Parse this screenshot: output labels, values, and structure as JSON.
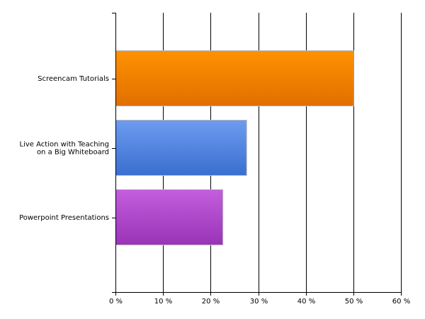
{
  "chart_data": {
    "type": "bar",
    "orientation": "horizontal",
    "categories": [
      [
        "Screencam Tutorials"
      ],
      [
        "Live Action with Teaching",
        "on a Big Whiteboard"
      ],
      [
        "Powerpoint Presentations"
      ]
    ],
    "values": [
      50,
      27.5,
      22.5
    ],
    "colors": [
      [
        "#ff9200",
        "#e06f00"
      ],
      [
        "#6d9cf0",
        "#3a6fd0"
      ],
      [
        "#c35edd",
        "#9a33b8"
      ]
    ],
    "xlim": [
      0,
      60
    ],
    "xticks": [
      0,
      10,
      20,
      30,
      40,
      50,
      60
    ],
    "tick_suffix": " %",
    "title": "",
    "xlabel": "",
    "ylabel": "",
    "grid": true,
    "legend": "none"
  }
}
